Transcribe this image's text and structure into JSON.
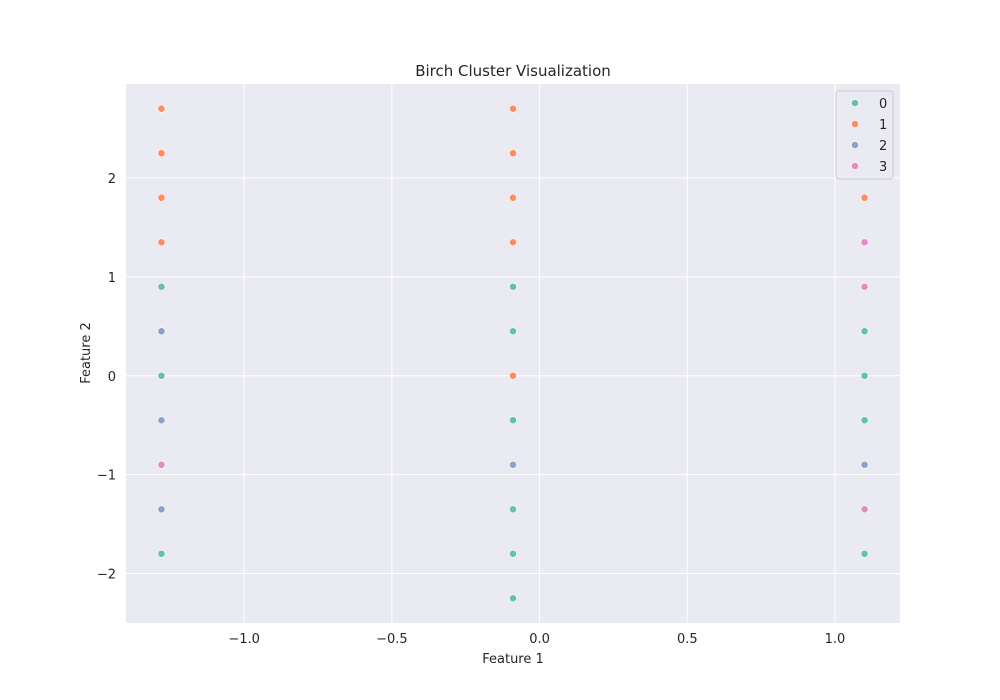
{
  "chart_data": {
    "type": "scatter",
    "title": "Birch Cluster Visualization",
    "xlabel": "Feature 1",
    "ylabel": "Feature 2",
    "xlim": [
      -1.4,
      1.22
    ],
    "ylim": [
      -2.5,
      2.95
    ],
    "xticks": [
      -1.0,
      -0.5,
      0.0,
      0.5,
      1.0
    ],
    "xtick_labels": [
      "−1.0",
      "−0.5",
      "0.0",
      "0.5",
      "1.0"
    ],
    "yticks": [
      -2,
      -1,
      0,
      1,
      2
    ],
    "ytick_labels": [
      "−2",
      "−1",
      "0",
      "1",
      "2"
    ],
    "grid": true,
    "legend_position": "top-right",
    "legend_entries": [
      "0",
      "1",
      "2",
      "3"
    ],
    "colors": {
      "0": "#66c2a5",
      "1": "#fc8d62",
      "2": "#8da0cb",
      "3": "#e78ac3",
      "plot_background": "#eaeaf2",
      "grid": "#ffffff"
    },
    "series": [
      {
        "name": "0",
        "points": [
          [
            -1.28,
            0.9
          ],
          [
            -1.28,
            0.0
          ],
          [
            -1.28,
            -1.8
          ],
          [
            -0.09,
            0.9
          ],
          [
            -0.09,
            0.45
          ],
          [
            -0.09,
            -0.45
          ],
          [
            -0.09,
            -1.35
          ],
          [
            -0.09,
            -1.8
          ],
          [
            -0.09,
            -2.25
          ],
          [
            1.1,
            0.45
          ],
          [
            1.1,
            0.0
          ],
          [
            1.1,
            -0.45
          ],
          [
            1.1,
            -1.8
          ]
        ]
      },
      {
        "name": "1",
        "points": [
          [
            -1.28,
            2.7
          ],
          [
            -1.28,
            2.25
          ],
          [
            -1.28,
            1.8
          ],
          [
            -1.28,
            1.35
          ],
          [
            -0.09,
            2.7
          ],
          [
            -0.09,
            2.25
          ],
          [
            -0.09,
            1.8
          ],
          [
            -0.09,
            1.35
          ],
          [
            -0.09,
            0.0
          ],
          [
            1.1,
            1.8
          ]
        ]
      },
      {
        "name": "2",
        "points": [
          [
            -1.28,
            0.45
          ],
          [
            -1.28,
            -0.45
          ],
          [
            -1.28,
            -1.35
          ],
          [
            -0.09,
            -0.9
          ],
          [
            1.1,
            -0.9
          ]
        ]
      },
      {
        "name": "3",
        "points": [
          [
            -1.28,
            -0.9
          ],
          [
            1.1,
            1.35
          ],
          [
            1.1,
            0.9
          ],
          [
            1.1,
            -1.35
          ]
        ]
      }
    ]
  }
}
